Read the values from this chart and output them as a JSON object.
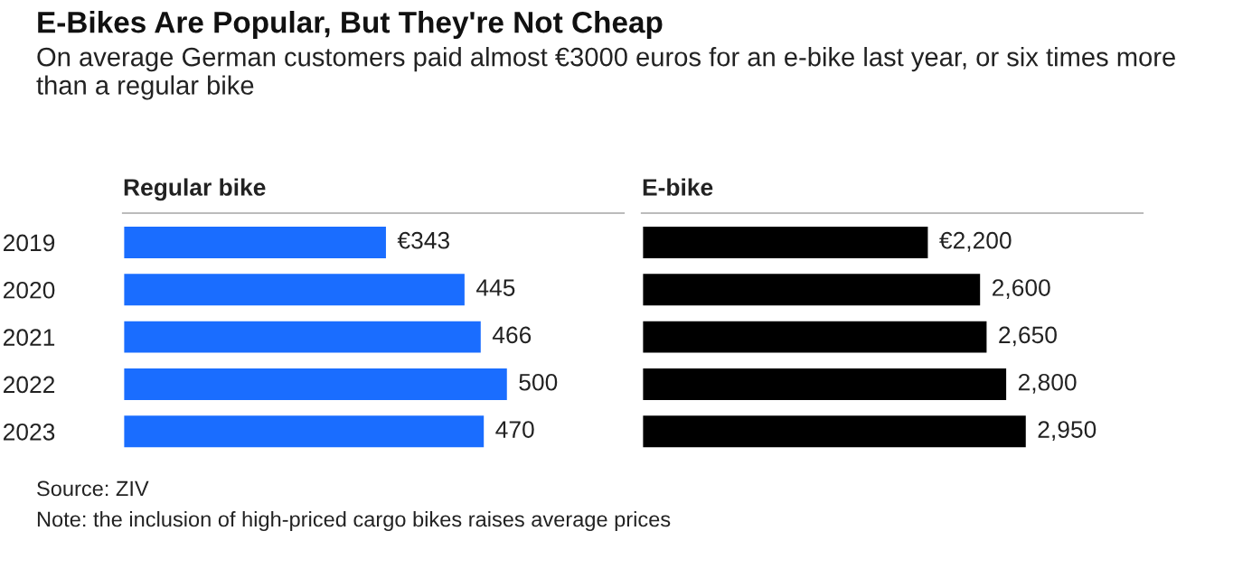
{
  "chart_data": [
    {
      "type": "bar",
      "orientation": "horizontal",
      "title": "Regular bike",
      "subtitle": "E-Bikes Are Popular, But They're Not Cheap",
      "categories": [
        "2019",
        "2020",
        "2021",
        "2022",
        "2023"
      ],
      "values": [
        343,
        445,
        466,
        500,
        470
      ],
      "color": "#1a6dff",
      "value_labels": [
        "€343",
        "445",
        "466",
        "500",
        "470"
      ],
      "tick_labels": "y",
      "annotations": [
        "On average German customers paid almost €3000 euros for an e-bike last year, or six times more than a regular bike",
        "Source: ZIV",
        "Note: the inclusion of high-priced cargo bikes raises average prices"
      ]
    },
    {
      "type": "bar",
      "orientation": "horizontal",
      "title": "E-bike",
      "categories": [
        "2019",
        "2020",
        "2021",
        "2022",
        "2023"
      ],
      "values": [
        2200,
        2600,
        2650,
        2800,
        2950
      ],
      "color": "#000000",
      "value_labels": [
        "€2,200",
        "2,600",
        "2,650",
        "2,800",
        "2,950"
      ],
      "tick_labels": false
    }
  ]
}
